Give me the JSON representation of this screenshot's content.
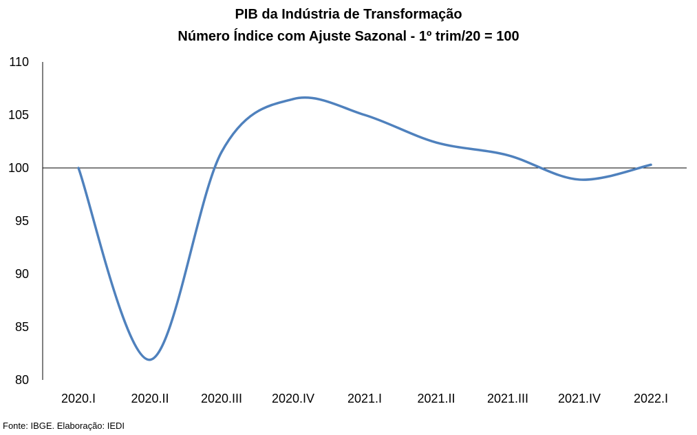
{
  "chart_data": {
    "type": "line",
    "title": "PIB da Indústria de Transformação",
    "subtitle": "Número Índice com Ajuste Sazonal - 1º trim/20 = 100",
    "xlabel": "",
    "ylabel": "",
    "categories": [
      "2020.I",
      "2020.II",
      "2020.III",
      "2020.IV",
      "2021.I",
      "2021.II",
      "2021.III",
      "2021.IV",
      "2022.I"
    ],
    "series": [
      {
        "values": [
          100.0,
          81.9,
          101.5,
          106.5,
          105.0,
          102.4,
          101.2,
          98.9,
          100.3
        ]
      }
    ],
    "ylim": [
      80,
      110
    ],
    "yticks": [
      80,
      85,
      90,
      95,
      100,
      105,
      110
    ],
    "reference_line": 100,
    "grid": false,
    "legend": "none",
    "line_color": "#4F81BD"
  },
  "footer": {
    "source": "Fonte: IBGE. Elaboração: IEDI"
  }
}
